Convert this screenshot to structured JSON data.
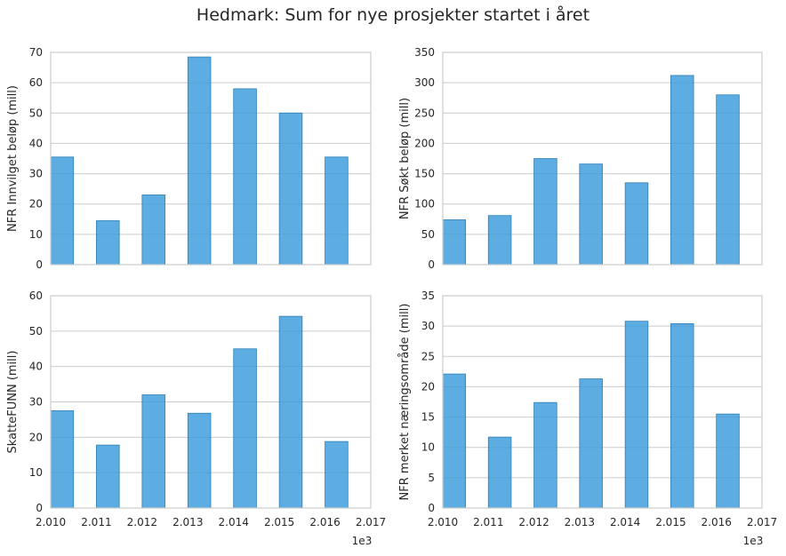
{
  "figure_title": "Hedmark: Sum for nye prosjekter startet i året",
  "bar_color": "#3498db",
  "x_offset_label": "1e3",
  "x_ticks": [
    "2.010",
    "2.011",
    "2.012",
    "2.013",
    "2.014",
    "2.015",
    "2.016",
    "2.017"
  ],
  "chart_data": [
    {
      "type": "bar",
      "ylabel": "NFR Innvilget beløp (mill)",
      "x": [
        2010,
        2011,
        2012,
        2013,
        2014,
        2015,
        2016
      ],
      "values": [
        35.5,
        14.5,
        23,
        68.5,
        58,
        50,
        35.5
      ],
      "ylim": [
        0,
        70
      ],
      "yticks": [
        "0",
        "10",
        "20",
        "30",
        "40",
        "50",
        "60",
        "70"
      ],
      "xlim": [
        2010,
        2017
      ],
      "grid": true
    },
    {
      "type": "bar",
      "ylabel": "NFR Søkt beløp (mill)",
      "x": [
        2010,
        2011,
        2012,
        2013,
        2014,
        2015,
        2016
      ],
      "values": [
        74,
        81,
        175,
        166,
        135,
        312,
        280
      ],
      "ylim": [
        0,
        350
      ],
      "yticks": [
        "0",
        "50",
        "100",
        "150",
        "200",
        "250",
        "300",
        "350"
      ],
      "xlim": [
        2010,
        2017
      ],
      "grid": true
    },
    {
      "type": "bar",
      "ylabel": "SkatteFUNN (mill)",
      "x": [
        2010,
        2011,
        2012,
        2013,
        2014,
        2015,
        2016
      ],
      "values": [
        27.5,
        17.8,
        32,
        26.8,
        45,
        54.2,
        18.8
      ],
      "ylim": [
        0,
        60
      ],
      "yticks": [
        "0",
        "10",
        "20",
        "30",
        "40",
        "50",
        "60"
      ],
      "xlim": [
        2010,
        2017
      ],
      "grid": true
    },
    {
      "type": "bar",
      "ylabel": "NFR merket næringsområde (mill)",
      "x": [
        2010,
        2011,
        2012,
        2013,
        2014,
        2015,
        2016
      ],
      "values": [
        22.1,
        11.7,
        17.4,
        21.3,
        30.8,
        30.4,
        15.5
      ],
      "ylim": [
        0,
        35
      ],
      "yticks": [
        "0",
        "5",
        "10",
        "15",
        "20",
        "25",
        "30",
        "35"
      ],
      "xlim": [
        2010,
        2017
      ],
      "grid": true
    }
  ]
}
